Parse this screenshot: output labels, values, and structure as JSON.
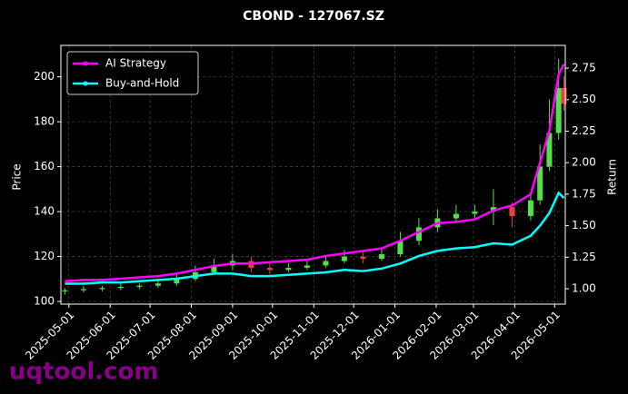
{
  "chart_data": {
    "type": "candlestick",
    "title": "CBOND - 127067.SZ",
    "x": [
      "2025-04-28",
      "2025-05-12",
      "2025-05-26",
      "2025-06-09",
      "2025-06-23",
      "2025-07-07",
      "2025-07-21",
      "2025-08-04",
      "2025-08-18",
      "2025-09-01",
      "2025-09-15",
      "2025-09-29",
      "2025-10-13",
      "2025-10-27",
      "2025-11-10",
      "2025-11-24",
      "2025-12-08",
      "2025-12-22",
      "2026-01-05",
      "2026-01-19",
      "2026-02-02",
      "2026-02-16",
      "2026-03-02",
      "2026-03-16",
      "2026-03-30",
      "2026-04-13",
      "2026-04-20",
      "2026-04-27",
      "2026-05-04",
      "2026-05-08"
    ],
    "open": [
      104.5,
      105,
      105.5,
      106,
      106.5,
      107,
      108,
      110,
      113,
      116,
      118,
      115,
      114,
      115,
      116,
      118,
      120,
      119,
      121,
      127,
      133,
      137,
      139,
      140,
      142,
      138,
      145,
      160,
      175,
      195
    ],
    "high": [
      106,
      107,
      107,
      108,
      108,
      110,
      112,
      116,
      119,
      121,
      120,
      117,
      117,
      118,
      120,
      123,
      122,
      124,
      131,
      137,
      141,
      143,
      143,
      150,
      144,
      148,
      170,
      190,
      208,
      200
    ],
    "low": [
      103,
      104,
      104.5,
      105,
      105.5,
      106,
      107,
      109,
      112,
      114,
      113,
      112,
      113,
      114,
      115,
      117,
      117,
      118,
      120,
      125,
      131,
      135,
      137,
      134,
      133,
      136,
      143,
      158,
      172,
      185
    ],
    "close": [
      105,
      105.5,
      106,
      106.5,
      107,
      108,
      110,
      113,
      116,
      118,
      115,
      114,
      115,
      116,
      118,
      120,
      119,
      121,
      127,
      133,
      137,
      139,
      140,
      142,
      138,
      145,
      160,
      175,
      195,
      188
    ],
    "up_color": "#55e04a",
    "down_color": "#e8413a",
    "series": [
      {
        "name": "AI Strategy",
        "color": "#ff00ff",
        "axis": "y2",
        "values": [
          1.06,
          1.07,
          1.07,
          1.08,
          1.09,
          1.1,
          1.12,
          1.15,
          1.18,
          1.2,
          1.2,
          1.21,
          1.22,
          1.23,
          1.26,
          1.28,
          1.3,
          1.32,
          1.38,
          1.45,
          1.52,
          1.53,
          1.55,
          1.62,
          1.66,
          1.75,
          2.0,
          2.25,
          2.7,
          2.78
        ]
      },
      {
        "name": "Buy-and-Hold",
        "color": "#00ffff",
        "axis": "y2",
        "values": [
          1.04,
          1.04,
          1.05,
          1.05,
          1.06,
          1.07,
          1.08,
          1.1,
          1.12,
          1.12,
          1.1,
          1.1,
          1.11,
          1.12,
          1.13,
          1.15,
          1.14,
          1.16,
          1.2,
          1.26,
          1.3,
          1.32,
          1.33,
          1.36,
          1.35,
          1.42,
          1.5,
          1.6,
          1.76,
          1.72
        ]
      }
    ],
    "ylabel": "Price",
    "y2label": "Return",
    "xlim": [
      "2025-04-25",
      "2026-05-09"
    ],
    "xticks": [
      "2025-05-01",
      "2025-06-01",
      "2025-07-01",
      "2025-08-01",
      "2025-09-01",
      "2025-10-01",
      "2025-11-01",
      "2025-12-01",
      "2026-01-01",
      "2026-02-01",
      "2026-03-01",
      "2026-04-01",
      "2026-05-01"
    ],
    "ylim": [
      98.8,
      214
    ],
    "yticks": [
      100,
      120,
      140,
      160,
      180,
      200
    ],
    "y2lim": [
      0.878,
      2.93
    ],
    "y2ticks": [
      {
        "value": 1,
        "label": "1.00"
      },
      {
        "value": 1.25,
        "label": "1.25"
      },
      {
        "value": 1.5,
        "label": "1.50"
      },
      {
        "value": 1.75,
        "label": "1.75"
      },
      {
        "value": 2,
        "label": "2.00"
      },
      {
        "value": 2.25,
        "label": "2.25"
      },
      {
        "value": 2.5,
        "label": "2.50"
      },
      {
        "value": 2.75,
        "label": "2.75"
      }
    ],
    "grid": true,
    "legend": "upper left",
    "watermark": "uqtool.com"
  }
}
